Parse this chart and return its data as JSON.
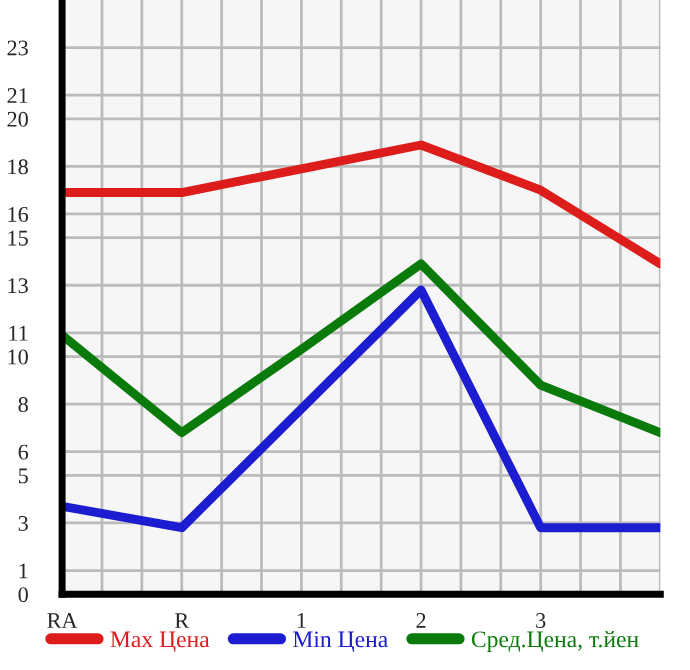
{
  "chart_data": {
    "type": "line",
    "categories": [
      "RA",
      "R",
      "1",
      "2",
      "3",
      null
    ],
    "series": [
      {
        "name": "Max Цена",
        "color": "#dd1c1c",
        "values": [
          16.9,
          16.9,
          17.9,
          18.9,
          17.0,
          13.9
        ]
      },
      {
        "name": "Min Цена",
        "color": "#1c1cd0",
        "values": [
          3.7,
          2.8,
          7.8,
          12.8,
          2.8,
          2.8
        ]
      },
      {
        "name": "Сред.Цена, т.йен",
        "color": "#0a7a0a",
        "values": [
          10.9,
          6.8,
          10.3,
          13.9,
          8.8,
          6.8
        ]
      }
    ],
    "ylim": [
      0,
      25
    ],
    "yticks": [
      0,
      1,
      3,
      5,
      6,
      8,
      10,
      11,
      13,
      15,
      16,
      18,
      20,
      21,
      23
    ],
    "grid": true,
    "legend": "bottom",
    "marker": "none",
    "line_style": "solid"
  }
}
